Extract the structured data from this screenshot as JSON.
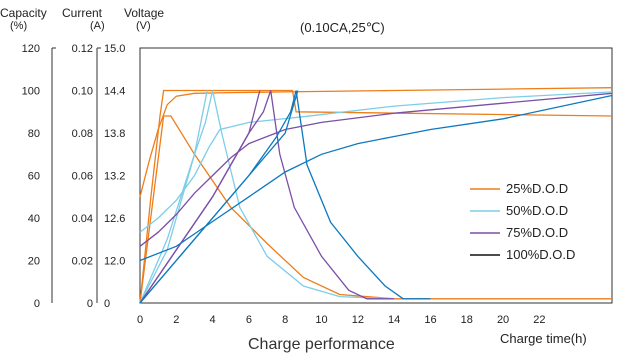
{
  "chart_data": {
    "type": "line",
    "title": "(0.10CA,25℃)",
    "caption": "Charge performance",
    "xlabel": "Charge time(h)",
    "axes_headers": {
      "capacity": {
        "label": "Capacity",
        "unit": "(%)"
      },
      "current": {
        "label": "Current",
        "unit": "(A)"
      },
      "voltage": {
        "label": "Voltage",
        "unit": "(V)"
      }
    },
    "x_ticks": [
      "0",
      "2",
      "4",
      "6",
      "8",
      "10",
      "12",
      "14",
      "16",
      "18",
      "20",
      "22"
    ],
    "xlim": [
      0,
      26
    ],
    "capacity_ticks": [
      "120",
      "100",
      "80",
      "60",
      "40",
      "20",
      "0"
    ],
    "capacity_lim": [
      0,
      120
    ],
    "current_ticks": [
      "0.12",
      "0.10",
      "0.08",
      "0.06",
      "0.04",
      "0.02",
      "0"
    ],
    "current_lim": [
      0,
      0.12
    ],
    "voltage_ticks": [
      "15.0",
      "14.4",
      "13.8",
      "13.2",
      "12.6",
      "12.0",
      "0"
    ],
    "voltage_ticks_numeric": [
      15.0,
      14.4,
      13.8,
      13.2,
      12.6,
      12.0,
      11.4
    ],
    "voltage_lim": [
      11.4,
      15.0
    ],
    "grid": false,
    "legend_position": "right",
    "series": [
      {
        "name": "25%D.O.D",
        "color": "#ef7d1a",
        "voltage": [
          [
            0,
            12.9
          ],
          [
            0.5,
            13.4
          ],
          [
            1,
            13.85
          ],
          [
            1.5,
            14.2
          ],
          [
            2,
            14.32
          ],
          [
            3,
            14.36
          ],
          [
            5,
            14.37
          ],
          [
            8,
            14.38
          ],
          [
            14,
            14.4
          ],
          [
            20,
            14.42
          ],
          [
            26,
            14.44
          ]
        ],
        "current": [
          [
            0,
            0.0
          ],
          [
            1.3,
            0.088
          ],
          [
            1.7,
            0.088
          ],
          [
            3,
            0.07
          ],
          [
            5,
            0.045
          ],
          [
            7,
            0.028
          ],
          [
            9,
            0.012
          ],
          [
            11,
            0.004
          ],
          [
            14,
            0.002
          ],
          [
            20,
            0.002
          ],
          [
            26,
            0.002
          ]
        ],
        "capacity": [
          [
            0,
            0
          ],
          [
            0.6,
            50
          ],
          [
            1.1,
            88
          ],
          [
            1.3,
            100
          ],
          [
            1.8,
            100
          ],
          [
            8,
            100
          ],
          [
            8.4,
            100
          ],
          [
            8.6,
            90
          ],
          [
            26,
            88
          ]
        ]
      },
      {
        "name": "50%D.O.D",
        "color": "#7dcde8",
        "voltage": [
          [
            0,
            12.4
          ],
          [
            1,
            12.6
          ],
          [
            2,
            12.85
          ],
          [
            3,
            13.2
          ],
          [
            3.8,
            13.6
          ],
          [
            4.4,
            13.85
          ],
          [
            6,
            13.95
          ],
          [
            9,
            14.03
          ],
          [
            14,
            14.18
          ],
          [
            20,
            14.3
          ],
          [
            26,
            14.38
          ]
        ],
        "current": [
          [
            0,
            0.0
          ],
          [
            1.5,
            0.03
          ],
          [
            3,
            0.07
          ],
          [
            3.6,
            0.085
          ],
          [
            4,
            0.1
          ],
          [
            4.5,
            0.08
          ],
          [
            5.5,
            0.045
          ],
          [
            7,
            0.022
          ],
          [
            9,
            0.008
          ],
          [
            11,
            0.003
          ],
          [
            14,
            0.002
          ]
        ],
        "capacity": [
          [
            0,
            0
          ],
          [
            1.5,
            25
          ],
          [
            3,
            70
          ],
          [
            3.7,
            100
          ]
        ]
      },
      {
        "name": "75%D.O.D",
        "color": "#7b4fa6",
        "voltage": [
          [
            0,
            12.2
          ],
          [
            1,
            12.4
          ],
          [
            2,
            12.65
          ],
          [
            3,
            12.95
          ],
          [
            4,
            13.2
          ],
          [
            5,
            13.45
          ],
          [
            6,
            13.65
          ],
          [
            7,
            13.75
          ],
          [
            8,
            13.85
          ],
          [
            10,
            13.95
          ],
          [
            14,
            14.08
          ],
          [
            20,
            14.22
          ],
          [
            26,
            14.36
          ]
        ],
        "current": [
          [
            0,
            0.0
          ],
          [
            2,
            0.025
          ],
          [
            4,
            0.05
          ],
          [
            6,
            0.08
          ],
          [
            6.8,
            0.09
          ],
          [
            7.2,
            0.1
          ],
          [
            7.7,
            0.07
          ],
          [
            8.5,
            0.045
          ],
          [
            10,
            0.022
          ],
          [
            11.5,
            0.006
          ],
          [
            12.5,
            0.002
          ],
          [
            14,
            0.002
          ]
        ],
        "capacity": [
          [
            0,
            0
          ],
          [
            2,
            25
          ],
          [
            4,
            50
          ],
          [
            6,
            80
          ],
          [
            6.6,
            100
          ]
        ]
      },
      {
        "name": "100%D.O.D",
        "color": "#0e79bf",
        "voltage": [
          [
            0,
            12.0
          ],
          [
            2,
            12.2
          ],
          [
            4,
            12.55
          ],
          [
            6,
            12.9
          ],
          [
            8,
            13.25
          ],
          [
            10,
            13.5
          ],
          [
            12,
            13.65
          ],
          [
            14,
            13.75
          ],
          [
            16,
            13.85
          ],
          [
            20,
            14.0
          ],
          [
            26,
            14.33
          ]
        ],
        "current": [
          [
            0,
            0.0
          ],
          [
            2,
            0.02
          ],
          [
            4,
            0.04
          ],
          [
            6,
            0.06
          ],
          [
            7.5,
            0.078
          ],
          [
            8.3,
            0.09
          ],
          [
            8.6,
            0.1
          ],
          [
            9.2,
            0.065
          ],
          [
            10.5,
            0.038
          ],
          [
            12,
            0.022
          ],
          [
            13.5,
            0.008
          ],
          [
            14.5,
            0.002
          ],
          [
            16,
            0.002
          ]
        ],
        "capacity": [
          [
            0,
            0
          ],
          [
            2,
            20
          ],
          [
            4,
            40
          ],
          [
            6,
            60
          ],
          [
            8,
            80
          ],
          [
            8.7,
            100
          ]
        ]
      }
    ]
  }
}
